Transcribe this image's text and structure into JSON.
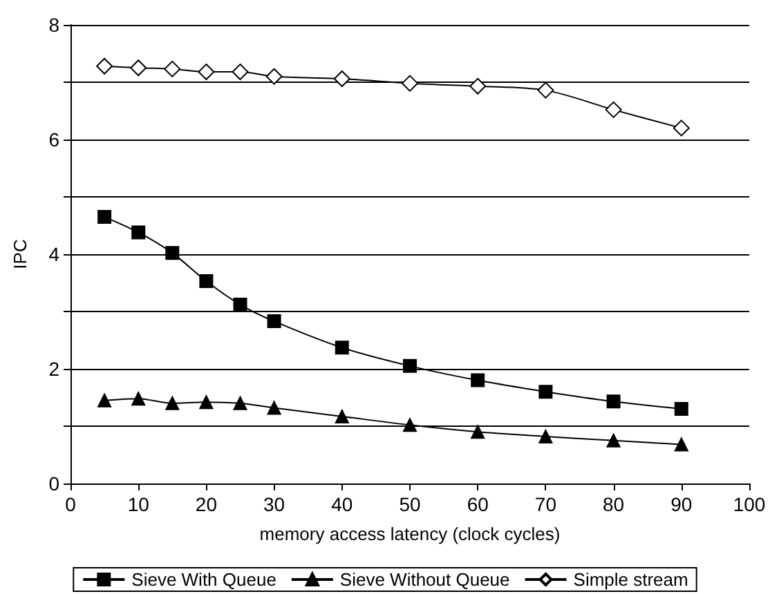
{
  "chart_data": {
    "type": "line",
    "xlabel": "memory access latency (clock cycles)",
    "ylabel": "IPC",
    "x": [
      5,
      10,
      15,
      20,
      25,
      30,
      40,
      50,
      60,
      70,
      80,
      90
    ],
    "xlim": [
      0,
      100
    ],
    "xticks": [
      0,
      10,
      20,
      30,
      40,
      50,
      60,
      70,
      80,
      90,
      100
    ],
    "ylim": [
      0,
      8
    ],
    "yticks": [
      0,
      {
        "value": 1,
        "label": null
      },
      2,
      {
        "value": 3,
        "label": null
      },
      4,
      {
        "value": 5,
        "label": null
      },
      6,
      {
        "value": 7,
        "label": null
      },
      8
    ],
    "grid": "y",
    "legend": "bottom",
    "line_style": "solid",
    "series": [
      {
        "name": "Sieve With Queue",
        "color": "#000000",
        "marker": "square",
        "values": [
          4.65,
          4.38,
          4.02,
          3.53,
          3.12,
          2.83,
          2.37,
          2.05,
          1.8,
          1.6,
          1.43,
          1.3
        ]
      },
      {
        "name": "Sieve Without Queue",
        "color": "#000000",
        "marker": "triangle",
        "values": [
          1.45,
          1.48,
          1.4,
          1.42,
          1.4,
          1.32,
          1.17,
          1.02,
          0.9,
          0.82,
          0.75,
          0.68
        ]
      },
      {
        "name": "Simple stream",
        "color": "#000000",
        "marker": "diamond",
        "values": [
          7.28,
          7.25,
          7.23,
          7.18,
          7.18,
          7.1,
          7.06,
          6.98,
          6.93,
          6.86,
          6.52,
          6.2
        ]
      }
    ]
  }
}
